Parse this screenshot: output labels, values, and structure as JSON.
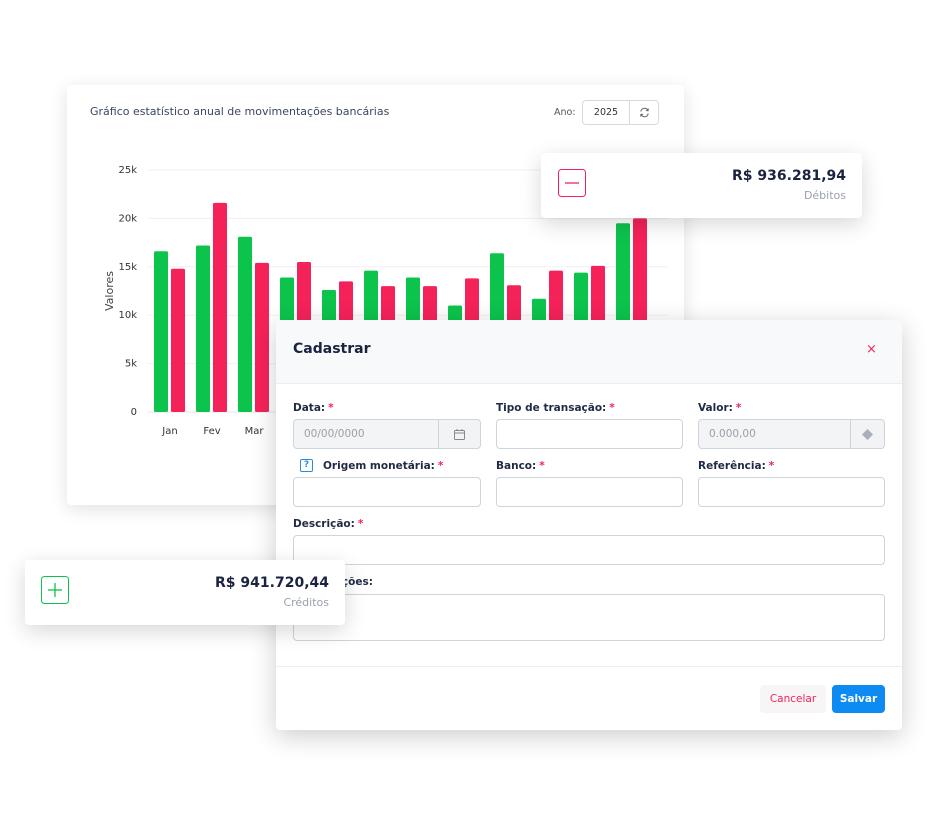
{
  "chart_card": {
    "title": "Gráfico estatístico anual de movimentações bancárias",
    "year_label": "Ano:",
    "year": "2025"
  },
  "chart_data": {
    "type": "bar",
    "y_label": "Valores",
    "categories": [
      "Jan",
      "Fev",
      "Mar",
      null,
      null,
      null,
      null,
      null,
      null,
      null,
      null,
      null
    ],
    "series": [
      {
        "color": "#0cc44c",
        "values": [
          16600,
          17200,
          18100,
          13900,
          12600,
          14600,
          13900,
          11000,
          16400,
          11700,
          14400,
          19500
        ]
      },
      {
        "color": "#f5225a",
        "values": [
          14800,
          21600,
          15400,
          15500,
          13500,
          13000,
          13000,
          13800,
          13100,
          14600,
          15100,
          20000
        ]
      }
    ],
    "ylim": [
      0,
      25000
    ],
    "yticks": [
      0,
      {
        "value": 5000,
        "label": "5k"
      },
      {
        "value": 10000,
        "label": "10k"
      },
      {
        "value": 15000,
        "label": "15k"
      },
      {
        "value": 20000,
        "label": "20k"
      },
      {
        "value": 25000,
        "label": "25k"
      }
    ],
    "grid": true
  },
  "debits_card": {
    "amount": "R$ 936.281,94",
    "label": "Débitos"
  },
  "credits_card": {
    "amount": "R$ 941.720,44",
    "label": "Créditos"
  },
  "modal": {
    "title": "Cadastrar",
    "close": "×",
    "required_mark": "*",
    "fields": [
      {
        "label": "Data:",
        "placeholder": "00/00/0000"
      },
      {
        "label": "Tipo de transação:"
      },
      {
        "label": "Valor:",
        "placeholder": "0.000,00"
      },
      {
        "label": "Origem monetária:",
        "help": "?"
      },
      {
        "label": "Banco:"
      },
      {
        "label": "Referência:"
      },
      {
        "label": "Descrição:"
      },
      {
        "label": "Observações:"
      }
    ],
    "buttons": {
      "cancel": "Cancelar",
      "save": "Salvar"
    }
  }
}
